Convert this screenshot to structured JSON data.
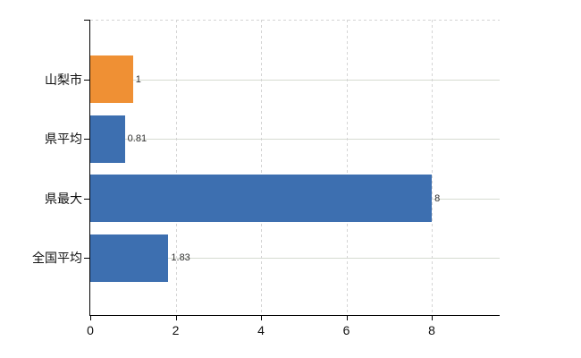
{
  "chart_data": {
    "type": "bar",
    "orientation": "horizontal",
    "title": "",
    "xlabel": "",
    "ylabel": "",
    "categories": [
      "山梨市",
      "県平均",
      "県最大",
      "全国平均"
    ],
    "values": [
      1,
      0.81,
      8,
      1.83
    ],
    "value_labels": [
      "1",
      "0.81",
      "8",
      "1.83"
    ],
    "bar_colors": [
      "#ef9034",
      "#3d6fb0",
      "#3d6fb0",
      "#3d6fb0"
    ],
    "x_ticks": [
      0,
      2,
      4,
      6,
      8
    ],
    "xlim": [
      0,
      9.59
    ],
    "legend": "none",
    "grid": {
      "vertical": "dashed",
      "horizontal": "solid",
      "top_border": "dashed"
    },
    "colors": {
      "axis": "#000000",
      "v_grid": "#d4d4d4",
      "h_grid": "#d6dbd1",
      "value_label": "#303030",
      "tick_label": "#111111",
      "background": "#ffffff"
    }
  }
}
